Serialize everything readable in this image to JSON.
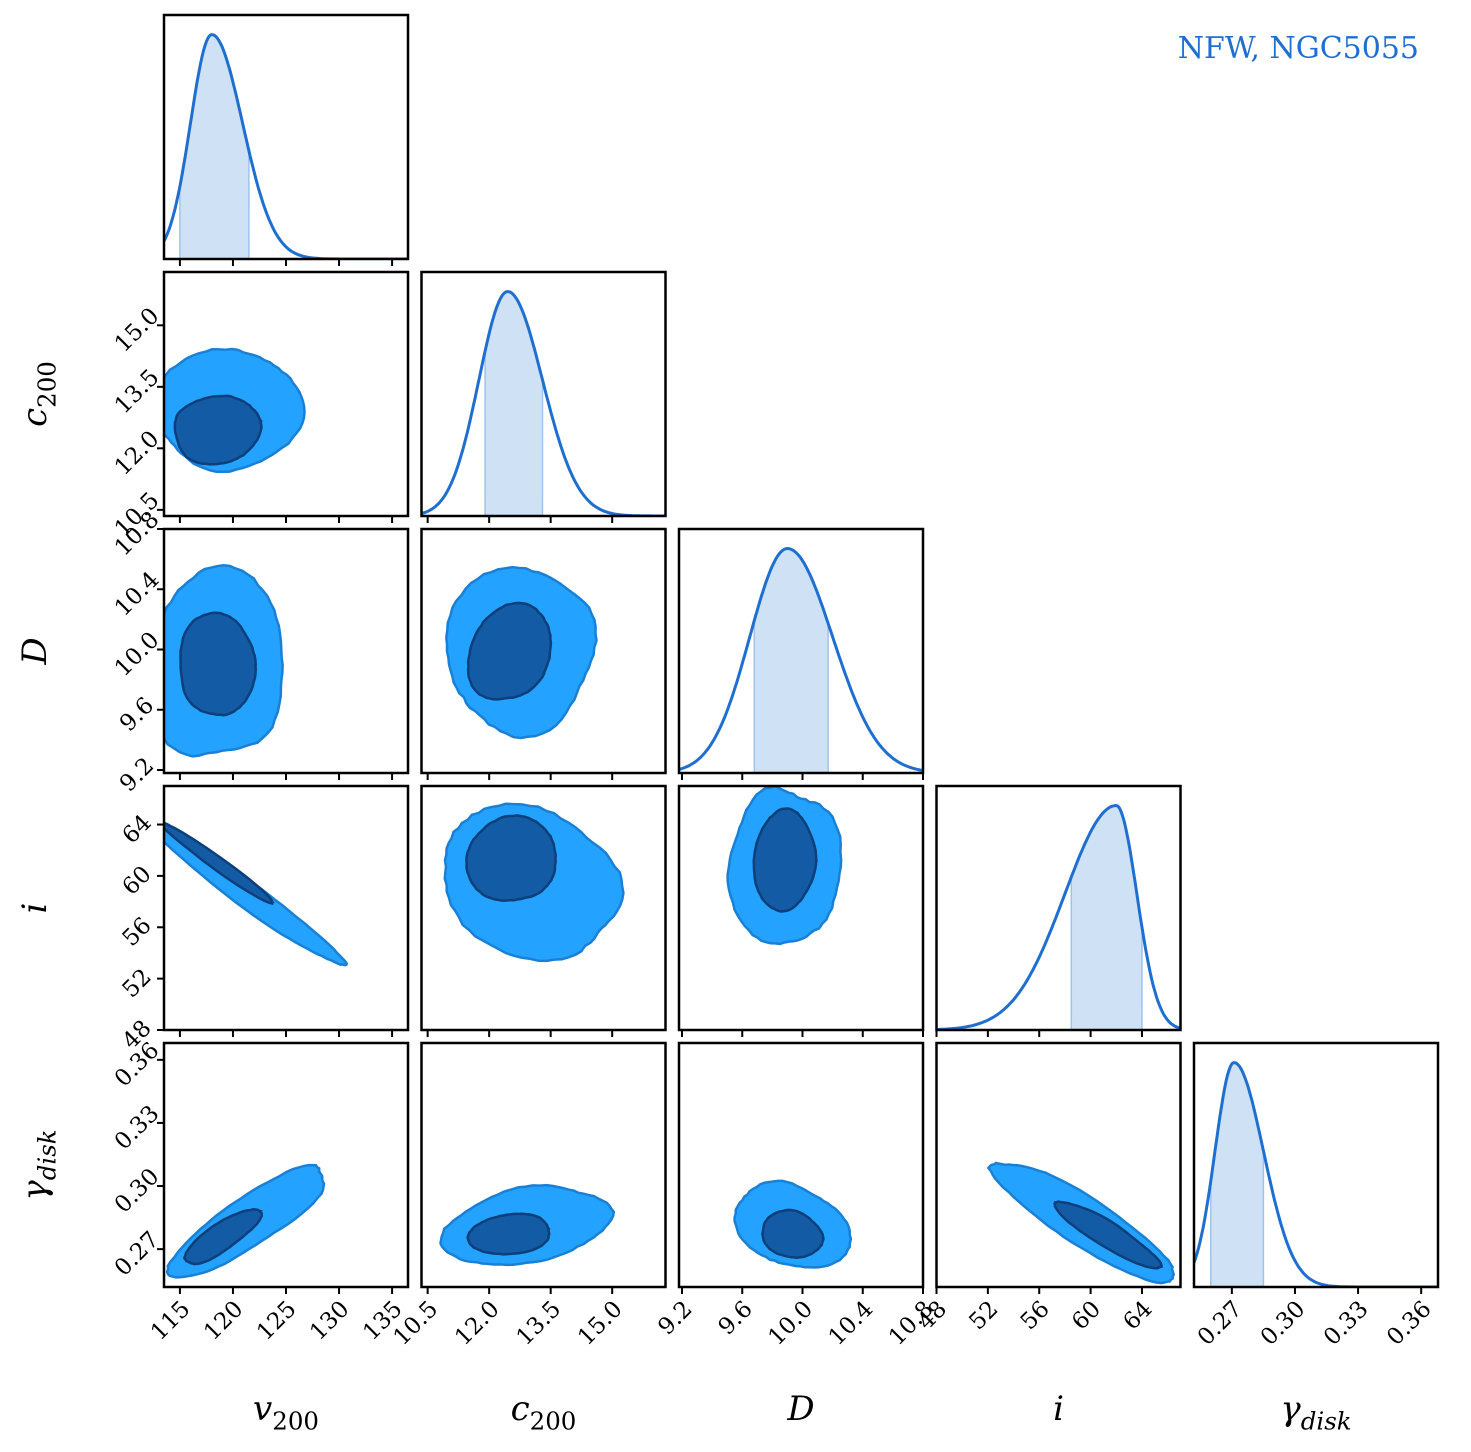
{
  "colors": {
    "line": "#1f6fd1",
    "shade": "#cfe2f5",
    "shade_edge": "#9fc3ea",
    "contour_outer": "#23a3ff",
    "contour_inner": "#145ba6",
    "contour_edge_outer": "#1a80d6",
    "contour_edge_inner": "#0d3f7a"
  },
  "chart_data": {
    "type": "corner",
    "title": "NFW, NGC5055",
    "parameters": [
      {
        "name": "v200",
        "label_base": "v",
        "label_sub": "200",
        "range": [
          113.5,
          136.5
        ],
        "ticks": [
          115,
          120,
          125,
          130,
          135
        ],
        "tick_labels": [
          "115",
          "120",
          "125",
          "130",
          "135"
        ],
        "mode": 118.0,
        "sigma": [
          -2.0,
          2.9
        ],
        "hpd": [
          115.0,
          121.5
        ]
      },
      {
        "name": "c200",
        "label_base": "c",
        "label_sub": "200",
        "range": [
          10.35,
          16.3
        ],
        "ticks": [
          10.5,
          12.0,
          13.5,
          15.0
        ],
        "tick_labels": [
          "10.5",
          "12.0",
          "13.5",
          "15.0"
        ],
        "mode": 12.45,
        "sigma": [
          -0.7,
          0.85
        ],
        "hpd": [
          11.9,
          13.3
        ]
      },
      {
        "name": "D",
        "label_base": "D",
        "label_sub": "",
        "range": [
          9.18,
          10.8
        ],
        "ticks": [
          9.2,
          9.6,
          10.0,
          10.4,
          10.8
        ],
        "tick_labels": [
          "9.2",
          "9.6",
          "10.0",
          "10.4",
          "10.8"
        ],
        "mode": 9.9,
        "sigma": [
          -0.25,
          0.3
        ],
        "hpd": [
          9.68,
          10.17
        ]
      },
      {
        "name": "i",
        "label_base": "i",
        "label_sub": "",
        "range": [
          48,
          67
        ],
        "ticks": [
          48,
          52,
          56,
          60,
          64
        ],
        "tick_labels": [
          "48",
          "52",
          "56",
          "60",
          "64"
        ],
        "mode": 62.0,
        "sigma": [
          -4.0,
          1.6
        ],
        "hpd": [
          58.5,
          64.0
        ]
      },
      {
        "name": "gamma_disk",
        "label_base": "γ",
        "label_sub": "disk",
        "range": [
          0.252,
          0.368
        ],
        "ticks": [
          0.27,
          0.3,
          0.33,
          0.36
        ],
        "tick_labels": [
          "0.27",
          "0.30",
          "0.33",
          "0.36"
        ],
        "mode": 0.271,
        "sigma": [
          -0.009,
          0.014
        ],
        "hpd": [
          0.26,
          0.285
        ]
      }
    ],
    "pairs": [
      {
        "x": 0,
        "y": 1,
        "outer": {
          "center": [
            119.5,
            12.95
          ],
          "rx": 7.0,
          "ry": 1.45,
          "angle": 0.25
        },
        "inner": {
          "center": [
            118.5,
            12.45
          ],
          "rx": 4.0,
          "ry": 0.85,
          "angle": 0.2
        }
      },
      {
        "x": 0,
        "y": 2,
        "outer": {
          "center": [
            118.5,
            9.9
          ],
          "rx": 6.5,
          "ry": 0.62,
          "angle": 0
        },
        "inner": {
          "center": [
            118.5,
            9.9
          ],
          "rx": 3.6,
          "ry": 0.34,
          "angle": 0
        }
      },
      {
        "x": 0,
        "y": 3,
        "outer": {
          "center": [
            121.0,
            58.8
          ],
          "rx": 11.5,
          "ry": 1.0,
          "angle": -0.63
        },
        "inner": {
          "center": [
            118.5,
            61.0
          ],
          "rx": 6.5,
          "ry": 0.5,
          "angle": -0.63
        }
      },
      {
        "x": 0,
        "y": 4,
        "outer": {
          "center": [
            121.5,
            0.283
          ],
          "rx": 8.5,
          "ry": 0.012,
          "angle": 0.6
        },
        "inner": {
          "center": [
            119.0,
            0.276
          ],
          "rx": 4.5,
          "ry": 0.006,
          "angle": 0.6
        }
      },
      {
        "x": 1,
        "y": 2,
        "outer": {
          "center": [
            12.75,
            10.0
          ],
          "rx": 1.8,
          "ry": 0.55,
          "angle": -0.55
        },
        "inner": {
          "center": [
            12.5,
            9.98
          ],
          "rx": 1.0,
          "ry": 0.32,
          "angle": -0.55
        }
      },
      {
        "x": 1,
        "y": 3,
        "outer": {
          "center": [
            13.0,
            59.5
          ],
          "rx": 2.3,
          "ry": 5.5,
          "angle": -0.45
        },
        "inner": {
          "center": [
            12.55,
            61.3
          ],
          "rx": 1.1,
          "ry": 3.3,
          "angle": -0.4
        }
      },
      {
        "x": 1,
        "y": 4,
        "outer": {
          "center": [
            12.9,
            0.281
          ],
          "rx": 2.0,
          "ry": 0.018,
          "angle": 0.2
        },
        "inner": {
          "center": [
            12.5,
            0.277
          ],
          "rx": 0.95,
          "ry": 0.01,
          "angle": 0.15
        }
      },
      {
        "x": 2,
        "y": 3,
        "outer": {
          "center": [
            9.88,
            60.7
          ],
          "rx": 0.36,
          "ry": 6.3,
          "angle": 0
        },
        "inner": {
          "center": [
            9.88,
            61.2
          ],
          "rx": 0.2,
          "ry": 4.0,
          "angle": 0
        }
      },
      {
        "x": 2,
        "y": 4,
        "outer": {
          "center": [
            9.93,
            0.281
          ],
          "rx": 0.37,
          "ry": 0.02,
          "angle": -0.35
        },
        "inner": {
          "center": [
            9.93,
            0.277
          ],
          "rx": 0.2,
          "ry": 0.011,
          "angle": -0.35
        }
      },
      {
        "x": 3,
        "y": 4,
        "outer": {
          "center": [
            59.5,
            0.283
          ],
          "rx": 8.5,
          "ry": 0.011,
          "angle": -0.55
        },
        "inner": {
          "center": [
            61.3,
            0.277
          ],
          "rx": 4.6,
          "ry": 0.006,
          "angle": -0.55
        }
      }
    ]
  }
}
